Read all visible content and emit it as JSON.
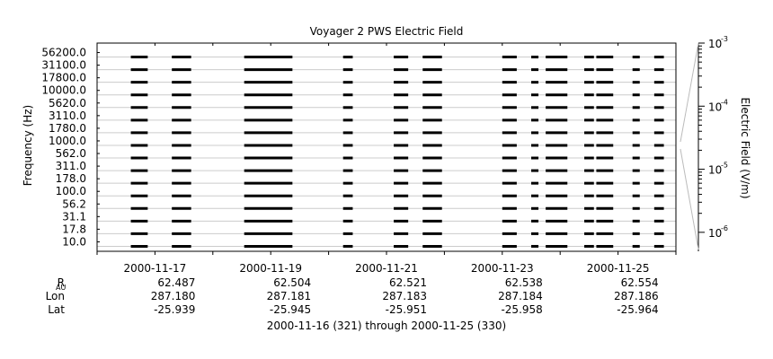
{
  "chart_data": {
    "type": "line",
    "title": "Voyager 2 PWS Electric Field",
    "ylabel": "Frequency (Hz)",
    "colorbar_label": "Electric Field (V/m)",
    "xlabel": "2000-11-16 (321) through 2000-11-25 (330)",
    "x_range": [
      "2000-11-16",
      "2000-11-26"
    ],
    "channels_hz": [
      "56200.0",
      "31100.0",
      "17800.0",
      "10000.0",
      "5620.0",
      "3110.0",
      "1780.0",
      "1000.0",
      "562.0",
      "311.0",
      "178.0",
      "100.0",
      "56.2",
      "31.1",
      "17.8",
      "10.0"
    ],
    "colorbar_ticks": [
      {
        "base": "10",
        "exp": "-3"
      },
      {
        "base": "10",
        "exp": "-4"
      },
      {
        "base": "10",
        "exp": "-5"
      },
      {
        "base": "10",
        "exp": "-6"
      }
    ],
    "colorbar_range": [
      5e-07,
      0.001
    ],
    "colorbar_scale": "log",
    "x_ticks": [
      "2000-11-17",
      "2000-11-19",
      "2000-11-21",
      "2000-11-23",
      "2000-11-25"
    ],
    "ephemeris": {
      "rows": [
        {
          "label": "R",
          "sub": "AU",
          "values": [
            "62.487",
            "62.504",
            "62.521",
            "62.538",
            "62.554"
          ]
        },
        {
          "label": "Lon",
          "sub": "",
          "values": [
            "287.180",
            "287.181",
            "287.183",
            "287.184",
            "287.186"
          ]
        },
        {
          "label": "Lat",
          "sub": "",
          "values": [
            "-25.939",
            "-25.945",
            "-25.951",
            "-25.958",
            "-25.964"
          ]
        }
      ]
    },
    "data_segments": [
      [
        "2000-11-16T14:00",
        "2000-11-16T21:00"
      ],
      [
        "2000-11-17T07:00",
        "2000-11-17T15:00"
      ],
      [
        "2000-11-18T13:00",
        "2000-11-19T09:00"
      ],
      [
        "2000-11-20T06:00",
        "2000-11-20T10:00"
      ],
      [
        "2000-11-21T03:00",
        "2000-11-21T09:00"
      ],
      [
        "2000-11-21T15:00",
        "2000-11-21T23:00"
      ],
      [
        "2000-11-23T00:00",
        "2000-11-23T06:00"
      ],
      [
        "2000-11-23T12:00",
        "2000-11-23T15:00"
      ],
      [
        "2000-11-23T18:00",
        "2000-11-24T03:00"
      ],
      [
        "2000-11-24T10:00",
        "2000-11-24T14:00"
      ],
      [
        "2000-11-24T15:00",
        "2000-11-24T22:00"
      ],
      [
        "2000-11-25T06:00",
        "2000-11-25T09:00"
      ],
      [
        "2000-11-25T15:00",
        "2000-11-25T19:00"
      ]
    ],
    "grid": "horizontal",
    "legend": "colorbar-right"
  }
}
